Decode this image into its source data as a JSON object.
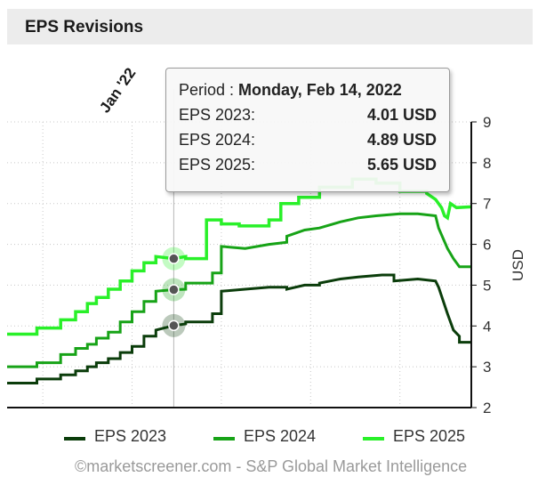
{
  "header": {
    "title": "EPS Revisions"
  },
  "tooltip": {
    "period_label": "Period : ",
    "period_value": "Monday, Feb 14, 2022",
    "rows": [
      {
        "label": "EPS 2023:",
        "value": "4.01 USD"
      },
      {
        "label": "EPS 2024:",
        "value": "4.89 USD"
      },
      {
        "label": "EPS 2025:",
        "value": "5.65 USD"
      }
    ]
  },
  "credit": "©marketscreener.com - S&P Global Market Intelligence",
  "chart_data": {
    "type": "line",
    "ylabel": "USD",
    "ylim": [
      2,
      9
    ],
    "yticks": [
      "2",
      "3",
      "4",
      "5",
      "6",
      "7",
      "8",
      "9"
    ],
    "xlim": [
      -42,
      114
    ],
    "xticks": [
      {
        "label": "Jan '22",
        "x": 0
      }
    ],
    "crosshair_x": 14,
    "grid": true,
    "legend": "bottom",
    "colors": {
      "EPS 2023": "#0b3d0b",
      "EPS 2024": "#17a317",
      "EPS 2025": "#29f029"
    },
    "series": [
      {
        "name": "EPS 2023",
        "points": [
          [
            -42,
            2.6
          ],
          [
            -32,
            2.6
          ],
          [
            -32,
            2.7
          ],
          [
            -24,
            2.7
          ],
          [
            -24,
            2.8
          ],
          [
            -19,
            2.8
          ],
          [
            -19,
            2.9
          ],
          [
            -15,
            2.9
          ],
          [
            -15,
            3.0
          ],
          [
            -12,
            3.0
          ],
          [
            -12,
            3.1
          ],
          [
            -8,
            3.1
          ],
          [
            -8,
            3.2
          ],
          [
            -4,
            3.2
          ],
          [
            -4,
            3.35
          ],
          [
            0,
            3.35
          ],
          [
            0,
            3.5
          ],
          [
            4,
            3.5
          ],
          [
            4,
            3.75
          ],
          [
            8,
            3.75
          ],
          [
            8,
            3.9
          ],
          [
            14,
            4.01
          ],
          [
            18,
            4.05
          ],
          [
            18,
            4.1
          ],
          [
            27,
            4.1
          ],
          [
            27,
            4.3
          ],
          [
            30,
            4.3
          ],
          [
            30,
            4.85
          ],
          [
            38,
            4.9
          ],
          [
            46,
            4.95
          ],
          [
            52,
            4.95
          ],
          [
            52,
            4.9
          ],
          [
            58,
            5.0
          ],
          [
            63,
            5.0
          ],
          [
            63,
            5.05
          ],
          [
            70,
            5.15
          ],
          [
            76,
            5.2
          ],
          [
            84,
            5.25
          ],
          [
            88,
            5.25
          ],
          [
            88,
            5.1
          ],
          [
            96,
            5.15
          ],
          [
            102,
            5.1
          ],
          [
            103,
            4.95
          ],
          [
            106,
            4.3
          ],
          [
            108,
            3.9
          ],
          [
            110,
            3.75
          ],
          [
            110,
            3.6
          ],
          [
            114,
            3.6
          ]
        ]
      },
      {
        "name": "EPS 2024",
        "points": [
          [
            -42,
            3.0
          ],
          [
            -32,
            3.0
          ],
          [
            -32,
            3.1
          ],
          [
            -24,
            3.1
          ],
          [
            -24,
            3.3
          ],
          [
            -19,
            3.3
          ],
          [
            -19,
            3.45
          ],
          [
            -15,
            3.45
          ],
          [
            -15,
            3.55
          ],
          [
            -12,
            3.55
          ],
          [
            -12,
            3.7
          ],
          [
            -8,
            3.7
          ],
          [
            -8,
            3.85
          ],
          [
            -4,
            3.85
          ],
          [
            -4,
            4.1
          ],
          [
            0,
            4.1
          ],
          [
            0,
            4.35
          ],
          [
            4,
            4.35
          ],
          [
            4,
            4.6
          ],
          [
            8,
            4.6
          ],
          [
            8,
            4.85
          ],
          [
            14,
            4.89
          ],
          [
            18,
            4.9
          ],
          [
            18,
            5.05
          ],
          [
            27,
            5.05
          ],
          [
            27,
            5.3
          ],
          [
            30,
            5.3
          ],
          [
            30,
            5.95
          ],
          [
            38,
            5.9
          ],
          [
            46,
            6.0
          ],
          [
            52,
            6.05
          ],
          [
            52,
            6.2
          ],
          [
            58,
            6.35
          ],
          [
            63,
            6.4
          ],
          [
            70,
            6.55
          ],
          [
            76,
            6.65
          ],
          [
            82,
            6.7
          ],
          [
            90,
            6.75
          ],
          [
            96,
            6.75
          ],
          [
            102,
            6.7
          ],
          [
            103,
            6.4
          ],
          [
            106,
            5.9
          ],
          [
            108,
            5.65
          ],
          [
            110,
            5.45
          ],
          [
            114,
            5.45
          ]
        ]
      },
      {
        "name": "EPS 2025",
        "points": [
          [
            -42,
            3.8
          ],
          [
            -32,
            3.8
          ],
          [
            -32,
            3.95
          ],
          [
            -24,
            3.95
          ],
          [
            -24,
            4.15
          ],
          [
            -19,
            4.15
          ],
          [
            -19,
            4.35
          ],
          [
            -15,
            4.35
          ],
          [
            -15,
            4.55
          ],
          [
            -12,
            4.55
          ],
          [
            -12,
            4.7
          ],
          [
            -8,
            4.7
          ],
          [
            -8,
            4.9
          ],
          [
            -4,
            4.9
          ],
          [
            -4,
            5.1
          ],
          [
            0,
            5.1
          ],
          [
            0,
            5.35
          ],
          [
            4,
            5.35
          ],
          [
            4,
            5.55
          ],
          [
            8,
            5.55
          ],
          [
            8,
            5.7
          ],
          [
            14,
            5.65
          ],
          [
            18,
            5.7
          ],
          [
            18,
            5.65
          ],
          [
            25,
            5.65
          ],
          [
            25,
            6.6
          ],
          [
            30,
            6.6
          ],
          [
            30,
            6.5
          ],
          [
            36,
            6.5
          ],
          [
            36,
            6.45
          ],
          [
            46,
            6.45
          ],
          [
            46,
            6.6
          ],
          [
            50,
            6.6
          ],
          [
            50,
            7.0
          ],
          [
            56,
            7.0
          ],
          [
            56,
            7.15
          ],
          [
            63,
            7.15
          ],
          [
            63,
            7.4
          ],
          [
            74,
            7.4
          ],
          [
            74,
            7.6
          ],
          [
            82,
            7.6
          ],
          [
            82,
            7.5
          ],
          [
            90,
            7.5
          ],
          [
            90,
            7.3
          ],
          [
            99,
            7.3
          ],
          [
            99,
            7.25
          ],
          [
            102,
            7.1
          ],
          [
            104,
            6.9
          ],
          [
            105,
            6.7
          ],
          [
            106,
            6.65
          ],
          [
            107,
            7.0
          ],
          [
            109,
            6.9
          ],
          [
            114,
            6.92
          ]
        ]
      }
    ],
    "markers": [
      {
        "series": "EPS 2023",
        "x": 14,
        "y": 4.01
      },
      {
        "series": "EPS 2024",
        "x": 14,
        "y": 4.89
      },
      {
        "series": "EPS 2025",
        "x": 14,
        "y": 5.65
      }
    ]
  }
}
